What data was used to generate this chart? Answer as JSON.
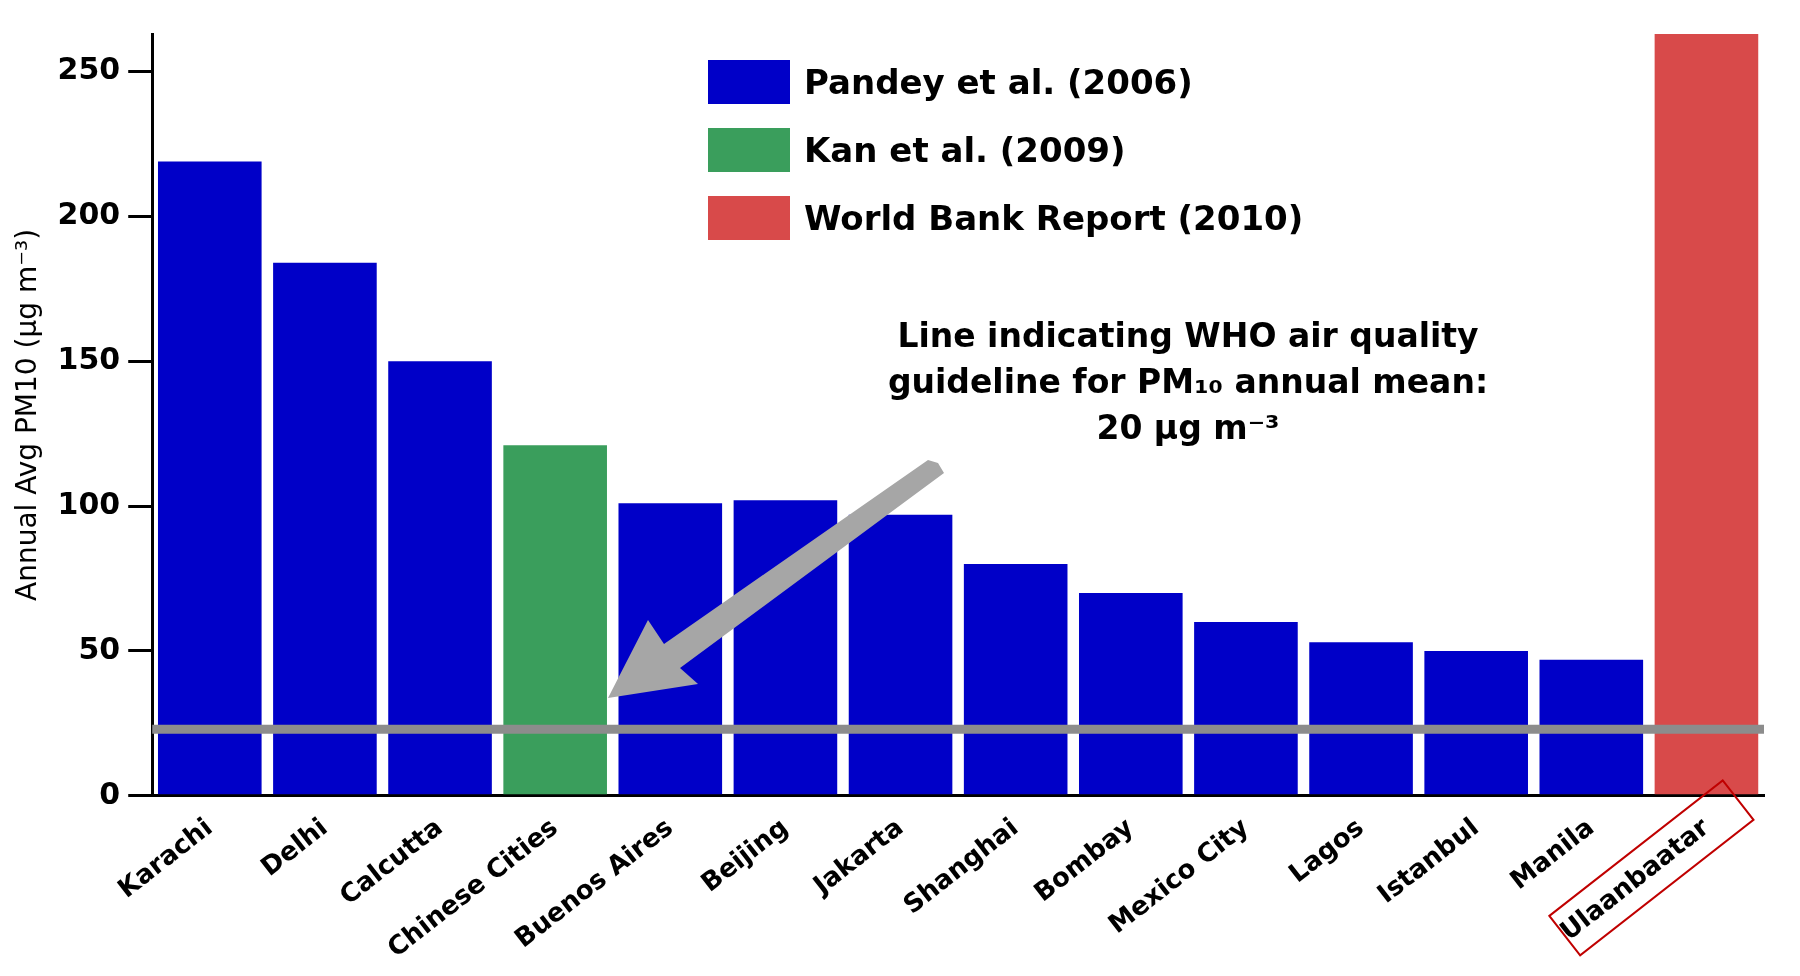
{
  "chart_data": {
    "type": "bar",
    "ylabel": "Annual Avg PM10 (µg m⁻³)",
    "categories": [
      "Karachi",
      "Delhi",
      "Calcutta",
      "Chinese Cities",
      "Buenos Aires",
      "Beijing",
      "Jakarta",
      "Shanghai",
      "Bombay",
      "Mexico City",
      "Lagos",
      "Istanbul",
      "Manila",
      "Ulaanbaatar"
    ],
    "series": [
      {
        "name": "Pandey et al. (2006)",
        "color": "#0000c8",
        "values": [
          219,
          184,
          150,
          null,
          101,
          102,
          97,
          80,
          70,
          60,
          53,
          50,
          47,
          null
        ]
      },
      {
        "name": "Kan et al. (2009)",
        "color": "#3a9e5c",
        "values": [
          null,
          null,
          null,
          121,
          null,
          null,
          null,
          null,
          null,
          null,
          null,
          null,
          null,
          null
        ]
      },
      {
        "name": "World Bank Report (2010)",
        "color": "#d84a4a",
        "values": [
          null,
          null,
          null,
          null,
          null,
          null,
          null,
          null,
          null,
          null,
          null,
          null,
          null,
          263
        ]
      }
    ],
    "ylim": [
      0,
      263
    ],
    "yticks": [
      0,
      50,
      100,
      150,
      200,
      250
    ],
    "grid": false,
    "legend": "top right",
    "ref_lines": [
      {
        "axis": "y",
        "value": 23,
        "color": "#8c8c8c"
      }
    ],
    "annotations": [
      "Line indicating WHO air quality guideline for PM₁₀ annual mean: 20 µg m⁻³"
    ]
  }
}
